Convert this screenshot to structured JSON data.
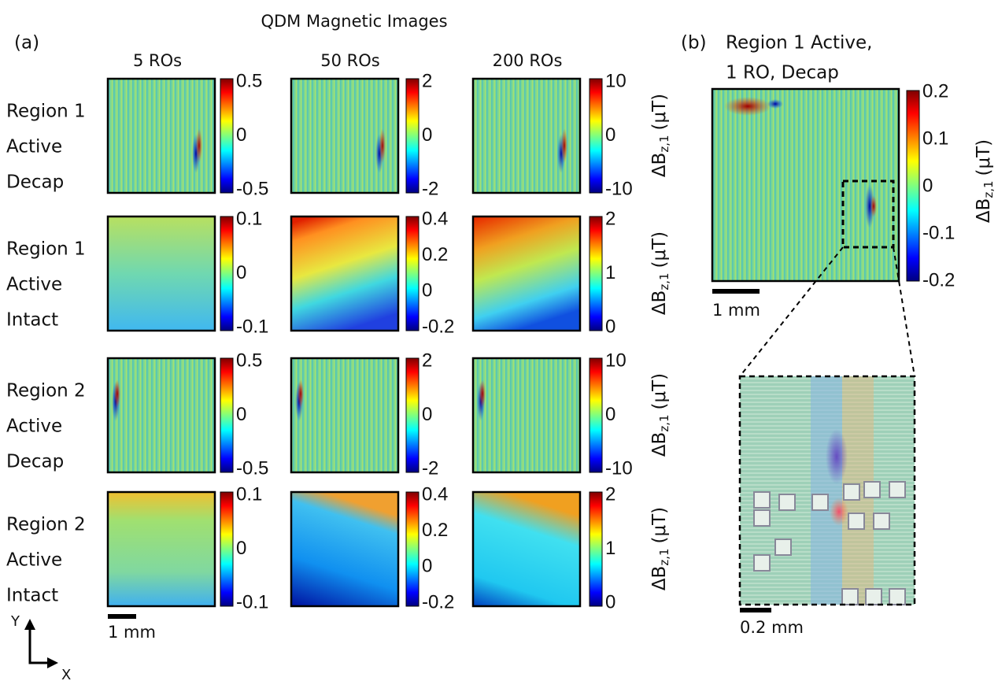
{
  "title": "QDM Magnetic Images",
  "panel_a": {
    "label": "(a)",
    "columns": [
      "5 ROs",
      "50 ROs",
      "200 ROs"
    ],
    "rows": [
      {
        "label": [
          "Region 1",
          "Active",
          "Decap"
        ],
        "colorbars": [
          [
            "0.5",
            "0",
            "-0.5"
          ],
          [
            "2",
            "0",
            "-2"
          ],
          [
            "10",
            "0",
            "-10"
          ]
        ],
        "unit": [
          "ΔB",
          "z,1",
          "(μT)"
        ]
      },
      {
        "label": [
          "Region 1",
          "Active",
          "Intact"
        ],
        "colorbars": [
          [
            "0.1",
            "0",
            "-0.1"
          ],
          [
            "0.4",
            "0.2",
            "0",
            "-0.2"
          ],
          [
            "2",
            "1",
            "0"
          ]
        ],
        "unit": [
          "ΔB",
          "z,1",
          "(μT)"
        ]
      },
      {
        "label": [
          "Region 2",
          "Active",
          "Decap"
        ],
        "colorbars": [
          [
            "0.5",
            "0",
            "-0.5"
          ],
          [
            "2",
            "0",
            "-2"
          ],
          [
            "10",
            "0",
            "-10"
          ]
        ],
        "unit": [
          "ΔB",
          "z,1",
          "(μT)"
        ]
      },
      {
        "label": [
          "Region 2",
          "Active",
          "Intact"
        ],
        "colorbars": [
          [
            "0.1",
            "0",
            "-0.1"
          ],
          [
            "0.4",
            "0.2",
            "0",
            "-0.2"
          ],
          [
            "2",
            "1",
            "0"
          ]
        ],
        "unit": [
          "ΔB",
          "z,1",
          "(μT)"
        ]
      }
    ],
    "scale_bar": "1 mm",
    "axes": {
      "y": "Y",
      "x": "X"
    }
  },
  "panel_b": {
    "label": "(b)",
    "title": [
      "Region 1 Active,",
      "1 RO, Decap"
    ],
    "colorbar": [
      "0.2",
      "0.1",
      "0",
      "-0.1",
      "-0.2"
    ],
    "unit": [
      "ΔB",
      "z,1",
      "(μT)"
    ],
    "scale_bar": "1 mm",
    "inset_scale_bar": "0.2 mm"
  }
}
